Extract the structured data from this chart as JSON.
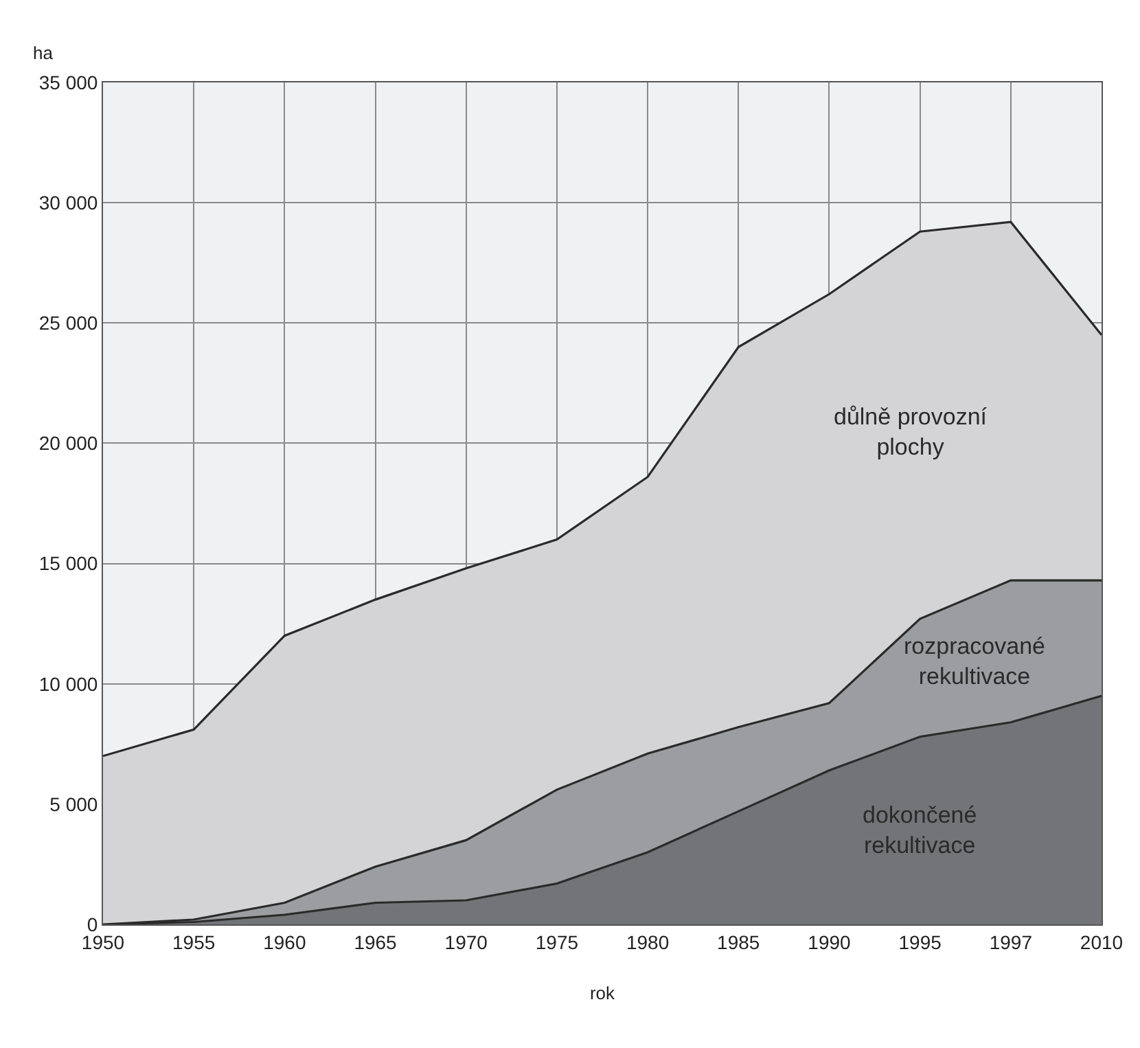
{
  "chart_data": {
    "type": "area",
    "stacked": true,
    "xlabel": "rok",
    "ylabel": "ha",
    "categories": [
      "1950",
      "1955",
      "1960",
      "1965",
      "1970",
      "1975",
      "1980",
      "1985",
      "1990",
      "1995",
      "1997",
      "2010"
    ],
    "series": [
      {
        "name": "dokončené rekultivace",
        "color": "#737478",
        "values": [
          0,
          100,
          400,
          900,
          1000,
          1700,
          3000,
          4700,
          6400,
          7800,
          8400,
          9500
        ]
      },
      {
        "name": "rozpracované rekultivace",
        "color": "#9c9da1",
        "values": [
          0,
          100,
          500,
          1500,
          2500,
          3900,
          4100,
          3500,
          2800,
          4900,
          5900,
          4800
        ]
      },
      {
        "name": "důlně provozní plochy",
        "color": "#d4d4d6",
        "values": [
          7000,
          7900,
          11100,
          11100,
          11300,
          10400,
          11500,
          15800,
          17000,
          16100,
          14900,
          10200
        ]
      }
    ],
    "ylim": [
      0,
      35000
    ],
    "yticks": [
      0,
      {
        "value": 5000,
        "label": "5 000"
      },
      {
        "value": 10000,
        "label": "10 000"
      },
      {
        "value": 15000,
        "label": "15 000"
      },
      {
        "value": 20000,
        "label": "20 000"
      },
      {
        "value": 25000,
        "label": "25 000"
      },
      {
        "value": 30000,
        "label": "30 000"
      },
      {
        "value": 35000,
        "label": "35 000"
      }
    ],
    "grid": true,
    "legend": false
  }
}
